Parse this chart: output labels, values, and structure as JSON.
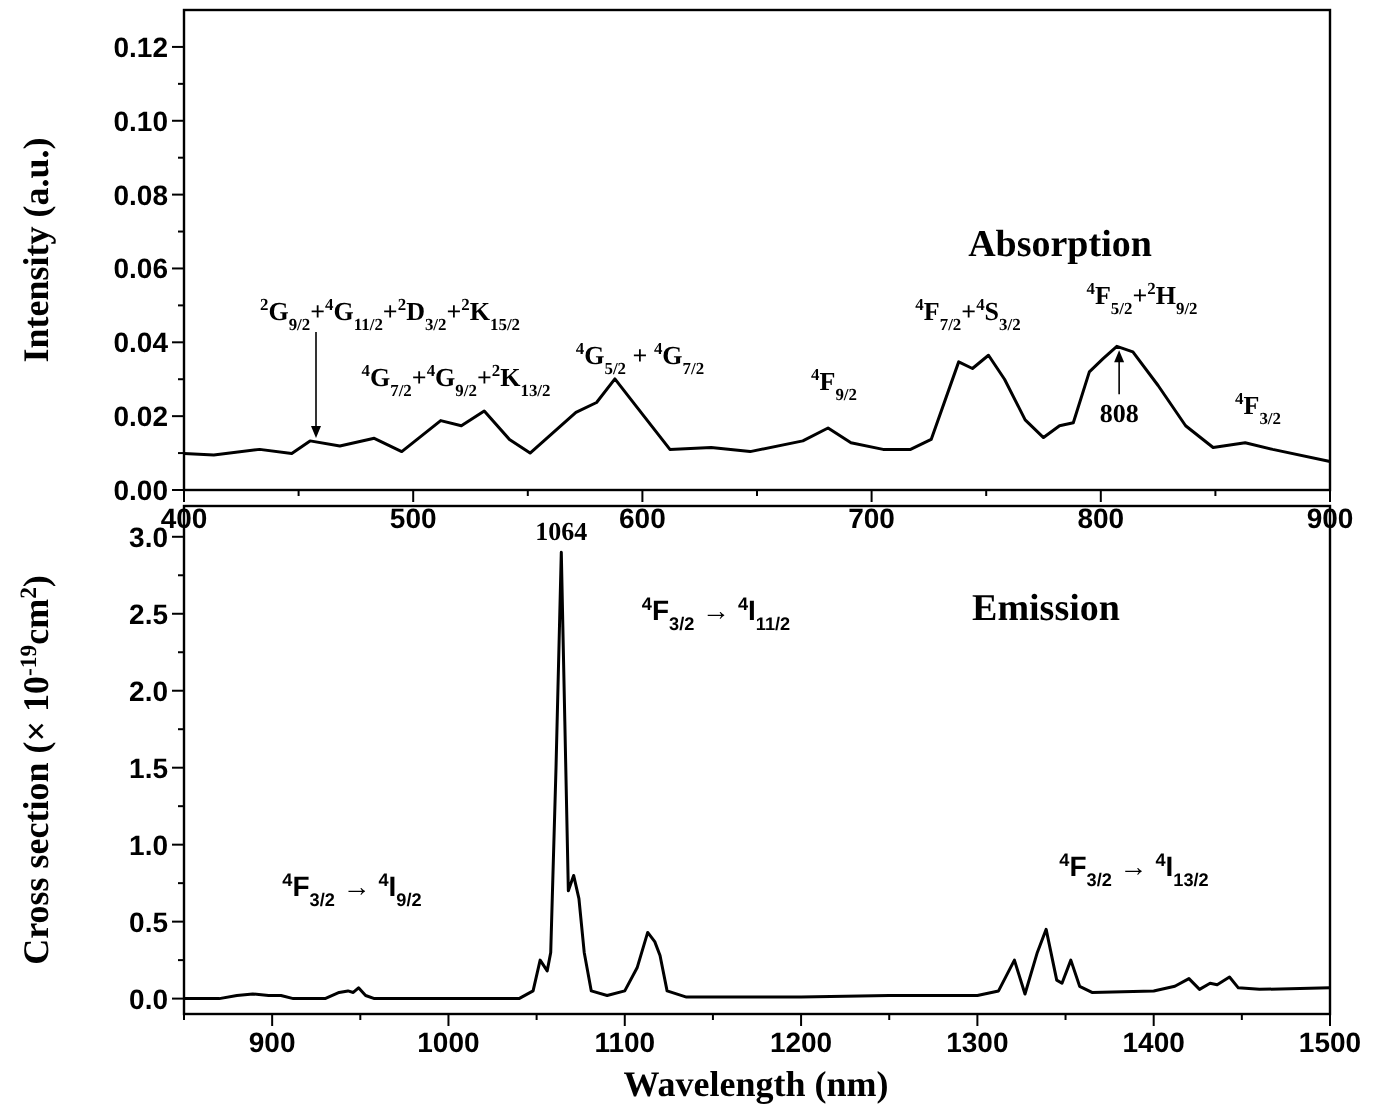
{
  "chart_data": [
    {
      "type": "line",
      "title": "Absorption",
      "ylabel": "Intensity (a.u.)",
      "series": [
        {
          "color": "#000000",
          "x": [
            400,
            413,
            433,
            447,
            455,
            468,
            483,
            495,
            512,
            521,
            531,
            542,
            551,
            571,
            580,
            588,
            597,
            612,
            630,
            647,
            670,
            681,
            691,
            705,
            717,
            726,
            738,
            744,
            751,
            758,
            767,
            775,
            782,
            788,
            795,
            801,
            807,
            814,
            825,
            837,
            849,
            863,
            875,
            900
          ],
          "values": [
            0.0099,
            0.0095,
            0.011,
            0.0099,
            0.0133,
            0.0119,
            0.014,
            0.0104,
            0.0188,
            0.0174,
            0.0214,
            0.0137,
            0.01,
            0.021,
            0.0237,
            0.0301,
            0.0229,
            0.011,
            0.0115,
            0.0104,
            0.0133,
            0.0168,
            0.0128,
            0.011,
            0.011,
            0.0137,
            0.0347,
            0.0329,
            0.0365,
            0.03,
            0.019,
            0.0142,
            0.0174,
            0.0182,
            0.032,
            0.0356,
            0.0389,
            0.0374,
            0.0283,
            0.0174,
            0.0115,
            0.0128,
            0.011,
            0.0077
          ]
        }
      ],
      "xlim": [
        400,
        900
      ],
      "xticks": [
        400,
        {
          "value": 450,
          "label": null
        },
        500,
        {
          "value": 550,
          "label": null
        },
        600,
        {
          "value": 650,
          "label": null
        },
        700,
        {
          "value": 750,
          "label": null
        },
        800,
        {
          "value": 850,
          "label": null
        },
        900
      ],
      "ylim": [
        0,
        0.13
      ],
      "yticks": [
        "0.00",
        {
          "value": 0.01,
          "label": null
        },
        {
          "value": 0.02,
          "label": "0.02"
        },
        {
          "value": 0.03,
          "label": null
        },
        {
          "value": 0.04,
          "label": "0.04"
        },
        {
          "value": 0.05,
          "label": null
        },
        {
          "value": 0.06,
          "label": "0.06"
        },
        {
          "value": 0.07,
          "label": null
        },
        {
          "value": 0.08,
          "label": "0.08"
        },
        {
          "value": 0.09,
          "label": null
        },
        {
          "value": 0.1,
          "label": "0.10"
        },
        {
          "value": 0.11,
          "label": null
        },
        {
          "value": 0.12,
          "label": "0.12"
        }
      ],
      "annotations": [
        "$^{2}$G$_{9/2}$+$^{4}$G$_{11/2}$+$^{2}$D$_{3/2}$+$^{2}$K$_{15/2}$",
        "$^{4}$G$_{7/2}$+$^{4}$G$_{9/2}$+$^{2}$K$_{13/2}$",
        "$^{4}$G$_{5/2}$ + $^{4}$G$_{7/2}$",
        "$^{4}$F$_{9/2}$",
        "$^{4}$F$_{7/2}$+$^{4}$S$_{3/2}$",
        "$^{4}$F$_{5/2}$+$^{2}$H$_{9/2}$",
        {
          "text": "808",
          "x": 808,
          "y": 0.0389
        },
        "$^{4}$F$_{3/2}$"
      ],
      "grid": false
    },
    {
      "type": "line",
      "title": "Emission",
      "xlabel": "Wavelength (nm)",
      "ylabel": "Cross section (× 10$^{-19}$cm$^{2}$)",
      "series": [
        {
          "color": "#000000",
          "x": [
            850,
            870,
            880,
            889,
            898,
            905,
            912,
            930,
            938,
            943,
            946,
            949,
            953,
            958,
            1000,
            1040,
            1048,
            1052,
            1056,
            1058,
            1061,
            1064,
            1066,
            1068,
            1071,
            1074,
            1077,
            1081,
            1090,
            1100,
            1107,
            1113,
            1117,
            1120,
            1124,
            1135,
            1200,
            1250,
            1300,
            1312,
            1321,
            1327,
            1334,
            1339,
            1345,
            1348,
            1353,
            1358,
            1365,
            1400,
            1412,
            1420,
            1426,
            1432,
            1436,
            1443,
            1448,
            1460,
            1500
          ],
          "values": [
            0,
            0,
            0.02,
            0.03,
            0.02,
            0.02,
            0,
            0,
            0.04,
            0.05,
            0.04,
            0.07,
            0.02,
            0,
            0,
            0,
            0.05,
            0.25,
            0.18,
            0.3,
            1.5,
            2.9,
            1.8,
            0.7,
            0.8,
            0.65,
            0.3,
            0.05,
            0.02,
            0.05,
            0.2,
            0.43,
            0.37,
            0.28,
            0.05,
            0.01,
            0.01,
            0.02,
            0.02,
            0.05,
            0.25,
            0.03,
            0.3,
            0.45,
            0.12,
            0.1,
            0.25,
            0.08,
            0.04,
            0.05,
            0.08,
            0.13,
            0.06,
            0.1,
            0.09,
            0.14,
            0.07,
            0.06,
            0.07
          ]
        }
      ],
      "xlim": [
        850,
        1500
      ],
      "xticks": [
        {
          "value": 850,
          "label": null
        },
        900,
        {
          "value": 950,
          "label": null
        },
        1000,
        {
          "value": 1050,
          "label": null
        },
        1100,
        {
          "value": 1150,
          "label": null
        },
        1200,
        {
          "value": 1250,
          "label": null
        },
        1300,
        {
          "value": 1350,
          "label": null
        },
        1400,
        {
          "value": 1450,
          "label": null
        },
        1500
      ],
      "ylim": [
        -0.1,
        3.2
      ],
      "yticks": [
        {
          "value": 0,
          "label": "0.0"
        },
        {
          "value": 0.25,
          "label": null
        },
        0.5,
        {
          "value": 0.75,
          "label": null
        },
        {
          "value": 1,
          "label": "1.0"
        },
        {
          "value": 1.25,
          "label": null
        },
        1.5,
        {
          "value": 1.75,
          "label": null
        },
        {
          "value": 2,
          "label": "2.0"
        },
        {
          "value": 2.25,
          "label": null
        },
        2.5,
        {
          "value": 2.75,
          "label": null
        },
        {
          "value": 3,
          "label": "3.0"
        }
      ],
      "annotations": [
        {
          "text": "1064",
          "x": 1064,
          "y": 2.9
        },
        "$^{4}$F$_{3/2}$ → $^{4}$I$_{11/2}$",
        "$^{4}$F$_{3/2}$ → $^{4}$I$_{9/2}$",
        "$^{4}$F$_{3/2}$ → $^{4}$I$_{13/2}$"
      ],
      "grid": false
    }
  ]
}
